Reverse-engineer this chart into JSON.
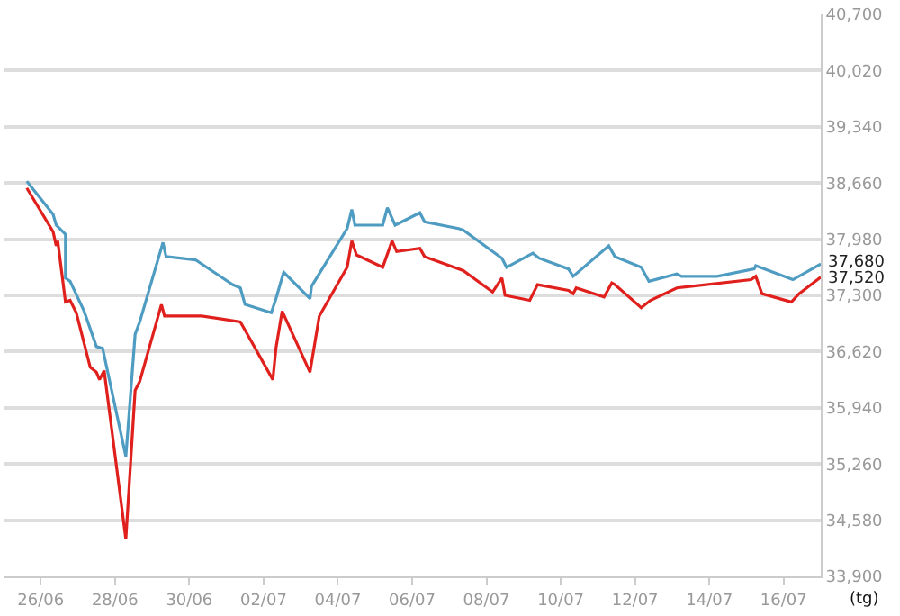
{
  "chart_data": {
    "type": "line",
    "ylabel": "(tg)",
    "x": [
      "--06-25T15:00",
      "--06-26T08:00",
      "--06-26T10:00",
      "--06-26T16:00",
      "--06-26T16:00",
      "--06-26T19:00",
      "--06-27T04:00",
      "--06-27T12:00",
      "--06-27T16:00",
      "--06-28T07:00",
      "--06-28T13:00",
      "--06-28T16:00",
      "--06-29T07:00",
      "--06-29T09:00",
      "--06-30T04:00",
      "--07-01T04:00",
      "--07-01T09:00",
      "--07-01T12:00",
      "--07-02T05:00",
      "--07-02T08:00",
      "--07-02T13:00",
      "--07-03T06:00",
      "--07-03T07:00",
      "--07-04T06:00",
      "--07-04T09:00",
      "--07-04T11:00",
      "--07-05T05:00",
      "--07-05T08:00",
      "--07-05T13:00",
      "--07-06T05:00",
      "--07-06T08:00",
      "--07-07T06:00",
      "--07-07T09:00",
      "--07-08T10:00",
      "--07-08T13:00",
      "--07-09T06:00",
      "--07-09T10:00",
      "--07-10T05:00",
      "--07-10T08:00",
      "--07-11T07:00",
      "--07-11T11:00",
      "--07-12T04:00",
      "--07-12T09:00",
      "--07-13T03:00",
      "--07-13T06:00",
      "--07-14T05:00",
      "--07-15T05:00",
      "--07-15T06:00",
      "--07-16T06:00",
      "--07-17T00:00"
    ],
    "series": [
      {
        "color": "#4f9cc2",
        "values": [
          38680,
          38280,
          38150,
          38040,
          37510,
          37470,
          37110,
          36680,
          36660,
          35350,
          36830,
          36980,
          37940,
          37770,
          37730,
          37430,
          37390,
          37190,
          37090,
          37260,
          37580,
          37260,
          37410,
          38110,
          38340,
          38150,
          38150,
          38360,
          38150,
          38300,
          38190,
          38110,
          38090,
          37750,
          37640,
          37810,
          37750,
          37620,
          37530,
          37900,
          37770,
          37640,
          37470,
          37560,
          37530,
          37530,
          37620,
          37660,
          37490,
          37680
        ],
        "value_labels": [
          null,
          null,
          null,
          null,
          null,
          null,
          null,
          null,
          null,
          null,
          null,
          null,
          null,
          null,
          null,
          null,
          null,
          null,
          null,
          null,
          null,
          null,
          null,
          null,
          null,
          null,
          null,
          null,
          null,
          null,
          null,
          null,
          null,
          null,
          null,
          null,
          null,
          null,
          null,
          null,
          null,
          null,
          null,
          null,
          null,
          null,
          null,
          null,
          null,
          "37,680"
        ]
      },
      {
        "color": "#e0201c",
        "x": [
          "--06-25T15:00",
          "--06-26T08:00",
          "--06-26T10:00",
          "--06-26T11:00",
          "--06-26T16:00",
          "--06-26T19:00",
          "--06-26T23:00",
          "--06-27T08:00",
          "--06-27T12:00",
          "--06-27T14:00",
          "--06-27T17:00",
          "--06-28T07:00",
          "--06-28T13:00",
          "--06-28T16:00",
          "--06-29T06:00",
          "--06-29T08:00",
          "--06-30T08:00",
          "--07-01T09:00",
          "--07-01T12:00",
          "--07-02T06:00",
          "--07-02T08:00",
          "--07-02T12:00",
          "--07-03T06:00",
          "--07-03T12:00",
          "--07-04T06:00",
          "--07-04T09:00",
          "--07-04T12:00",
          "--07-05T05:00",
          "--07-05T11:00",
          "--07-05T14:00",
          "--07-06T05:00",
          "--07-06T08:00",
          "--07-07T09:00",
          "--07-08T04:00",
          "--07-08T10:00",
          "--07-08T12:00",
          "--07-09T04:00",
          "--07-09T09:00",
          "--07-10T05:00",
          "--07-10T08:00",
          "--07-10T10:00",
          "--07-11T04:00",
          "--07-11T09:00",
          "--07-11T11:00",
          "--07-12T04:00",
          "--07-12T10:00",
          "--07-13T03:00",
          "--07-15T03:00",
          "--07-15T06:00",
          "--07-15T10:00",
          "--07-16T05:00",
          "--07-16T10:00",
          "--07-17T00:00"
        ],
        "values": [
          38600,
          38070,
          37900,
          37960,
          37220,
          37240,
          37090,
          36430,
          36370,
          36280,
          36390,
          34350,
          36150,
          36260,
          37190,
          37050,
          37050,
          36980,
          36880,
          36280,
          36660,
          37110,
          36370,
          37050,
          37640,
          37960,
          37790,
          37640,
          37960,
          37830,
          37870,
          37770,
          37600,
          37340,
          37510,
          37300,
          37240,
          37430,
          37360,
          37320,
          37390,
          37280,
          37450,
          37430,
          37150,
          37240,
          37390,
          37490,
          37530,
          37320,
          37220,
          37320,
          37520
        ],
        "value_labels": [
          null,
          null,
          null,
          null,
          null,
          null,
          null,
          null,
          null,
          null,
          null,
          null,
          null,
          null,
          null,
          null,
          null,
          null,
          null,
          null,
          null,
          null,
          null,
          null,
          null,
          null,
          null,
          null,
          null,
          null,
          null,
          null,
          null,
          null,
          null,
          null,
          null,
          null,
          null,
          null,
          null,
          null,
          null,
          null,
          null,
          null,
          null,
          null,
          null,
          null,
          null,
          null,
          "37,520"
        ]
      }
    ],
    "xlim": [
      "--06-25",
      "--07-17"
    ],
    "xticks": [
      {
        "value": "--06-26",
        "label": "26/06"
      },
      {
        "value": "--06-28",
        "label": "28/06"
      },
      {
        "value": "--06-30",
        "label": "30/06"
      },
      {
        "value": "--07-02",
        "label": "02/07"
      },
      {
        "value": "--07-04",
        "label": "04/07"
      },
      {
        "value": "--07-06",
        "label": "06/07"
      },
      {
        "value": "--07-08",
        "label": "08/07"
      },
      {
        "value": "--07-10",
        "label": "10/07"
      },
      {
        "value": "--07-12",
        "label": "12/07"
      },
      {
        "value": "--07-14",
        "label": "14/07"
      },
      {
        "value": "--07-16",
        "label": "16/07"
      }
    ],
    "ylim": [
      33900,
      40700
    ],
    "yticks": [
      {
        "value": 33900,
        "label": "33,900"
      },
      {
        "value": 34580,
        "label": "34,580"
      },
      {
        "value": 35260,
        "label": "35,260"
      },
      {
        "value": 35940,
        "label": "35,940"
      },
      {
        "value": 36620,
        "label": "36,620"
      },
      {
        "value": 37300,
        "label": "37,300"
      },
      {
        "value": 37980,
        "label": "37,980"
      },
      {
        "value": 38660,
        "label": "38,660"
      },
      {
        "value": 39340,
        "label": "39,340"
      },
      {
        "value": 40020,
        "label": "40,020"
      },
      {
        "value": 40700,
        "label": "40,700"
      }
    ],
    "grid": "y",
    "marker": "none",
    "line_style": "solid"
  }
}
